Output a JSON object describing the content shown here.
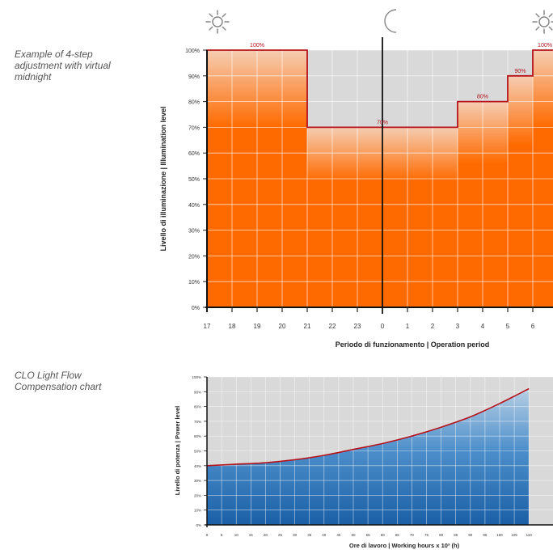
{
  "captions": {
    "chart1": "Example of 4-step adjustment with virtual midnight",
    "chart2": "CLO Light Flow Compensation chart"
  },
  "chart_data": [
    {
      "type": "area",
      "title": "",
      "xlabel": "Periodo di funzionamento | Operation period",
      "ylabel": "Livello di illuminazione | Illumination level",
      "x_ticks": [
        "17",
        "18",
        "19",
        "20",
        "21",
        "22",
        "23",
        "0",
        "1",
        "2",
        "3",
        "4",
        "5",
        "6"
      ],
      "y_ticks": [
        "0%",
        "10%",
        "20%",
        "30%",
        "40%",
        "50%",
        "60%",
        "70%",
        "80%",
        "90%",
        "100%"
      ],
      "ylim": [
        0,
        100
      ],
      "steps": [
        {
          "from": "17",
          "to": "21",
          "value": 100,
          "label": "100%"
        },
        {
          "from": "21",
          "to": "3",
          "value": 70,
          "label": "70%"
        },
        {
          "from": "3",
          "to": "5",
          "value": 80,
          "label": "80%"
        },
        {
          "from": "5",
          "to": "6",
          "value": 90,
          "label": "90%"
        },
        {
          "from": "6",
          "to": "7",
          "value": 100,
          "label": "100%"
        }
      ],
      "midnight_marker": "0",
      "icons": [
        "sun-icon",
        "moon-icon",
        "sun-icon"
      ],
      "fill_color": "#ff6a00",
      "line_color": "#b5121b",
      "grid": true
    },
    {
      "type": "area",
      "title": "",
      "xlabel": "Ore di lavoro | Working hours x 10³ (h)",
      "ylabel": "Livello di potenza | Power level",
      "x_ticks": [
        "0",
        "5",
        "10",
        "15",
        "20",
        "25",
        "30",
        "35",
        "40",
        "45",
        "50",
        "55",
        "60",
        "65",
        "70",
        "75",
        "80",
        "85",
        "90",
        "95",
        "100",
        "105",
        "110"
      ],
      "y_ticks": [
        "0%",
        "10%",
        "20%",
        "30%",
        "40%",
        "50%",
        "60%",
        "70%",
        "80%",
        "90%",
        "100%"
      ],
      "ylim": [
        0,
        100
      ],
      "x": [
        0,
        10,
        20,
        30,
        40,
        50,
        60,
        70,
        80,
        90,
        100,
        110
      ],
      "y": [
        40,
        41,
        42,
        44,
        47,
        51,
        55,
        60,
        66,
        73,
        82,
        92
      ],
      "fill_color": "#1f6db3",
      "line_color": "#b5121b",
      "grid": true
    }
  ]
}
